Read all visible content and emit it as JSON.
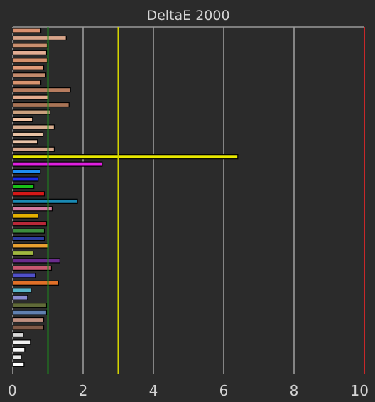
{
  "chart_data": {
    "type": "bar",
    "orientation": "horizontal",
    "title": "DeltaE 2000",
    "xlabel": "",
    "ylabel": "",
    "xlim": [
      0,
      10
    ],
    "xticks": [
      0,
      2,
      4,
      6,
      8,
      10
    ],
    "grid": true,
    "reference_lines": [
      {
        "value": 1,
        "color": "#1e8a1e"
      },
      {
        "value": 3,
        "color": "#d4d400"
      },
      {
        "value": 10,
        "color": "#c8282a"
      }
    ],
    "bars": [
      {
        "value": 0.8,
        "color": "#d9906f"
      },
      {
        "value": 1.52,
        "color": "#d8a58a"
      },
      {
        "value": 0.98,
        "color": "#c98f6f"
      },
      {
        "value": 0.96,
        "color": "#e2ad93"
      },
      {
        "value": 0.98,
        "color": "#d5906c"
      },
      {
        "value": 0.88,
        "color": "#e09a78"
      },
      {
        "value": 0.94,
        "color": "#c28a6c"
      },
      {
        "value": 0.8,
        "color": "#d8946f"
      },
      {
        "value": 1.64,
        "color": "#b87d60"
      },
      {
        "value": 1.0,
        "color": "#e3ab8e"
      },
      {
        "value": 1.6,
        "color": "#a97456"
      },
      {
        "value": 1.06,
        "color": "#caa07e"
      },
      {
        "value": 0.56,
        "color": "#f0c2a2"
      },
      {
        "value": 1.18,
        "color": "#d8ad90"
      },
      {
        "value": 0.86,
        "color": "#e6c1a4"
      },
      {
        "value": 0.7,
        "color": "#e9c4a8"
      },
      {
        "value": 1.18,
        "color": "#d3a48a"
      },
      {
        "value": 6.4,
        "color": "#e8e800"
      },
      {
        "value": 2.54,
        "color": "#e020e0"
      },
      {
        "value": 0.78,
        "color": "#1e8cf0"
      },
      {
        "value": 0.72,
        "color": "#1c2ae0"
      },
      {
        "value": 0.6,
        "color": "#18c018"
      },
      {
        "value": 0.9,
        "color": "#d41818"
      },
      {
        "value": 1.84,
        "color": "#1a8ab4"
      },
      {
        "value": 1.12,
        "color": "#d27aa0"
      },
      {
        "value": 0.72,
        "color": "#e4b000"
      },
      {
        "value": 0.96,
        "color": "#b82838"
      },
      {
        "value": 0.9,
        "color": "#3c8c3c"
      },
      {
        "value": 0.9,
        "color": "#2c3ca0"
      },
      {
        "value": 1.0,
        "color": "#e8a030"
      },
      {
        "value": 0.58,
        "color": "#a0b840"
      },
      {
        "value": 1.34,
        "color": "#6a2c8c"
      },
      {
        "value": 1.1,
        "color": "#c85870"
      },
      {
        "value": 0.64,
        "color": "#5050c8"
      },
      {
        "value": 1.3,
        "color": "#e07028"
      },
      {
        "value": 0.52,
        "color": "#5ab4c8"
      },
      {
        "value": 0.42,
        "color": "#8c8cd0"
      },
      {
        "value": 0.96,
        "color": "#606a38"
      },
      {
        "value": 0.96,
        "color": "#6080b0"
      },
      {
        "value": 0.88,
        "color": "#c09080"
      },
      {
        "value": 0.88,
        "color": "#805a48"
      },
      {
        "value": 0.3,
        "color": "#d8d8d8"
      },
      {
        "value": 0.5,
        "color": "#f0f0f0"
      },
      {
        "value": 0.34,
        "color": "#f8f8f8"
      },
      {
        "value": 0.24,
        "color": "#e8e8e8"
      },
      {
        "value": 0.32,
        "color": "#ffffff"
      }
    ]
  },
  "colors": {
    "background": "#2b2b2b",
    "plot_background": "#2b2b2b",
    "grid": "#9a9a9a",
    "axis_text": "#d4d4d4",
    "bar_outline": "#000000"
  }
}
